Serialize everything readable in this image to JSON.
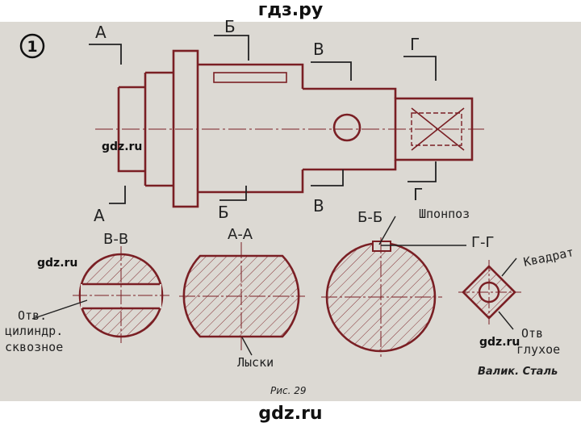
{
  "header": {
    "site": "гдз.ру"
  },
  "footer": {
    "site": "gdz.ru"
  },
  "exercise": {
    "number": "1"
  },
  "watermarks": [
    "gdz.ru",
    "gdz.ru",
    "gdz.ru"
  ],
  "cut_marks": {
    "a_top": "А",
    "a_bottom": "А",
    "b_top": "Б",
    "b_bottom": "Б",
    "v_top": "В",
    "v_bottom": "В",
    "g_top": "Г",
    "g_bottom": "Г"
  },
  "sections": {
    "vv": "В-В",
    "aa": "А-А",
    "bb": "Б-Б",
    "gg": "Г-Г"
  },
  "labels": {
    "keyway": "Шпонпоз",
    "square": "Квадрат",
    "hole": "Отв.",
    "hole_type1": "цилиндр.",
    "hole_type2": "сквозное",
    "flats": "Лыски",
    "hole2": "Отв",
    "blind": "глухое"
  },
  "caption": {
    "figure": "Рис. 29",
    "title": "Валик. Сталь"
  },
  "colors": {
    "ink": "#7a1f24",
    "pencil": "#222222",
    "paper": "#dcd9d3"
  }
}
